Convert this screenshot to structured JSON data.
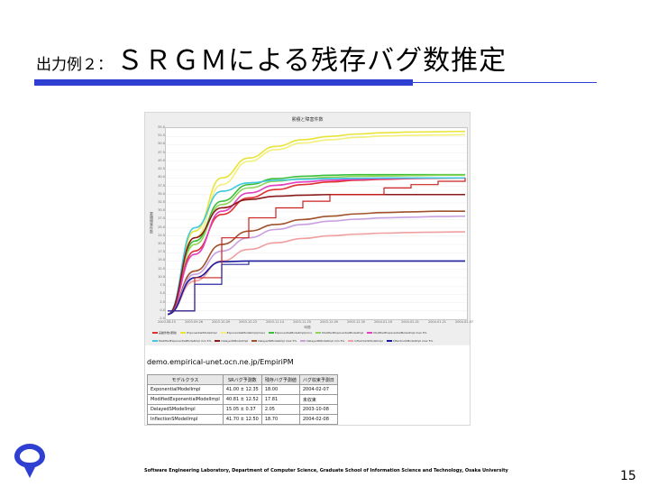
{
  "slide": {
    "title_prefix": "出力例２：",
    "title_main": "ＳＲＧＭによる残存バグ数推定",
    "footer": "Software Engineering Laboratory, Department of Computer Science, Graduate School of Information Science and Technology, Osaka University",
    "page_number": "15",
    "accent_color": "#2f3fd1"
  },
  "screenshot": {
    "url": "demo.empirical-unet.ocn.ne.jp/EmpiriPM",
    "table": {
      "headers": [
        "モデルクラス",
        "SRバグ予測数",
        "残存バグ予測値",
        "バグ収束予測日"
      ],
      "rows": [
        [
          "ExponentialModelImpl",
          "41.00 ± 12.35",
          "18.00",
          "2004-02-07"
        ],
        [
          "ModifiedExponentialModelImpl",
          "40.81 ± 12.52",
          "17.81",
          "未収束"
        ],
        [
          "DelayedSModelImpl",
          "15.05 ± 0.37",
          "2.05",
          "2003-10-08"
        ],
        [
          "InflectionSModelImpl",
          "41.70 ± 12.50",
          "18.70",
          "2004-02-08"
        ]
      ]
    }
  },
  "chart_data": {
    "type": "line",
    "title": "累積と障害件数",
    "ylabel": "累積障害件数",
    "xlabel": "時間",
    "ylim": [
      -2.5,
      55
    ],
    "y_ticks": [
      "55.0",
      "52.5",
      "50.0",
      "47.5",
      "45.0",
      "42.5",
      "40.0",
      "37.5",
      "35.0",
      "32.5",
      "30.0",
      "27.5",
      "25.0",
      "22.5",
      "20.0",
      "17.5",
      "15.0",
      "12.5",
      "10.0",
      "7.5",
      "5.0",
      "2.5",
      "0.0",
      "-2.5"
    ],
    "categories": [
      "2003.08.15",
      "2003.09.26",
      "2003.10.09",
      "2003.10.23",
      "2003.11.14",
      "2003.11.25",
      "2003.12.09",
      "2003.12.30",
      "2004.01.16",
      "2004.02.01",
      "2004.01.21",
      "2004.02.07"
    ],
    "series": [
      {
        "color": "#e8e43a",
        "values": [
          -1,
          24,
          40,
          46,
          49.5,
          51.5,
          52.5,
          53.2,
          53.6,
          53.8,
          53.9,
          54
        ]
      },
      {
        "color": "#f2f07a",
        "values": [
          -1,
          22,
          38,
          45,
          48.5,
          50.5,
          51.5,
          52.2,
          52.6,
          52.8,
          52.9,
          53
        ]
      },
      {
        "color": "#3bbf3b",
        "values": [
          -1,
          21,
          33,
          38,
          39.8,
          40.5,
          40.8,
          41,
          41,
          41,
          41,
          41
        ]
      },
      {
        "color": "#8fd45a",
        "values": [
          -1,
          20,
          32,
          37,
          39,
          39.8,
          40.2,
          40.5,
          40.6,
          40.7,
          40.8,
          40.8
        ]
      },
      {
        "color": "#e03030",
        "values": [
          -1,
          18,
          29,
          34,
          36.5,
          38,
          38.8,
          39.3,
          39.6,
          39.8,
          39.9,
          40
        ]
      },
      {
        "color": "#e040c0",
        "values": [
          -1,
          17,
          30,
          35.5,
          37.8,
          38.8,
          39.3,
          39.6,
          39.8,
          39.9,
          40,
          40
        ]
      },
      {
        "color": "#40c8e0",
        "values": [
          -1,
          25,
          36,
          38.5,
          39.3,
          39.6,
          39.8,
          39.9,
          40,
          40,
          40,
          40
        ]
      },
      {
        "color": "#8b1a1a",
        "values": [
          -1,
          22,
          31,
          33.5,
          34.5,
          34.8,
          35,
          35,
          35,
          35,
          35,
          35
        ]
      },
      {
        "color": "#a0522d",
        "values": [
          -1,
          12,
          20,
          24,
          26,
          27.5,
          28.5,
          29.2,
          29.6,
          29.8,
          30,
          30
        ]
      },
      {
        "color": "#c8a0e0",
        "values": [
          -1,
          11,
          18,
          22,
          24.5,
          26,
          27,
          27.6,
          28,
          28.2,
          28.4,
          28.5
        ]
      },
      {
        "color": "#f0a0a0",
        "values": [
          -1,
          9,
          15,
          18.5,
          20.5,
          21.8,
          22.6,
          23.1,
          23.4,
          23.6,
          23.7,
          23.8
        ]
      },
      {
        "color": "#1a1aa0",
        "values": [
          -1,
          10,
          14.8,
          15,
          15,
          15,
          15,
          15,
          15,
          15,
          15,
          15
        ]
      }
    ],
    "step_series": [
      {
        "color": "#cc2020",
        "values": [
          0,
          10,
          22,
          28,
          31,
          33,
          35,
          35,
          37,
          38,
          39,
          40
        ]
      },
      {
        "color": "#2a2aa0",
        "values": [
          0,
          8,
          14,
          15,
          15,
          15,
          15,
          15,
          15,
          15,
          15,
          15
        ]
      }
    ],
    "legend": [
      {
        "label": "実績件数(累積)",
        "color": "#e03030"
      },
      {
        "label": "ExponentialModelImpl",
        "color": "#e8e43a"
      },
      {
        "label": "ExponentialModelImpl(max)",
        "color": "#f2f07a"
      },
      {
        "label": "ExponentialModelImpl(min)",
        "color": "#3bbf3b"
      },
      {
        "label": "ModifiedExponentialModelImpl",
        "color": "#8fd45a"
      },
      {
        "label": "ModifiedExponentialModelImpl max 5%",
        "color": "#e040c0"
      },
      {
        "label": "ModifiedExponentialModelImpl min 5%",
        "color": "#40c8e0"
      },
      {
        "label": "DelayedSModelImpl",
        "color": "#8b1a1a"
      },
      {
        "label": "DelayedSModelImpl max 5%",
        "color": "#a0522d"
      },
      {
        "label": "DelayedSModelImpl min 5%",
        "color": "#c8a0e0"
      },
      {
        "label": "InflectionSModelImpl",
        "color": "#f0a0a0"
      },
      {
        "label": "InflectionSModelImpl max 5%",
        "color": "#1a1aa0"
      }
    ],
    "grid": true
  }
}
